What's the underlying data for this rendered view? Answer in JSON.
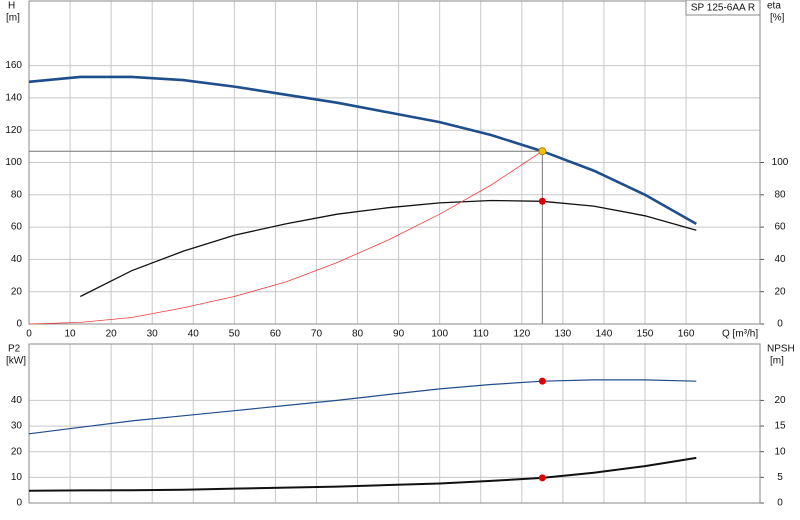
{
  "chart_data": [
    {
      "type": "line",
      "title": "SP 125-6AA R",
      "xlabel": "Q [m³/h]",
      "ylabel": "H",
      "ylabel_unit": "[m]",
      "y2label": "eta",
      "y2label_unit": "[%]",
      "x": [
        0,
        12.5,
        25,
        37.5,
        50,
        62.5,
        75,
        87.5,
        100,
        112.5,
        125,
        137.5,
        150,
        162.5
      ],
      "xlim": [
        0,
        178
      ],
      "xticks": [
        0,
        10,
        20,
        30,
        40,
        50,
        60,
        70,
        80,
        90,
        100,
        110,
        120,
        130,
        140,
        150,
        160
      ],
      "show_xtick_labels": true,
      "ylim": [
        0,
        200
      ],
      "yticks": [
        0,
        20,
        40,
        60,
        80,
        100,
        120,
        140,
        160
      ],
      "y2lim": [
        0,
        200
      ],
      "y2ticks": [
        0,
        20,
        40,
        60,
        80,
        100
      ],
      "grid": true,
      "series": [
        {
          "color": "#1f4e8c",
          "width": 2.6,
          "values": [
            150,
            153,
            153,
            151,
            147,
            142,
            137,
            131,
            125,
            117,
            107,
            95,
            80,
            62
          ]
        },
        {
          "color": "#111111",
          "width": 1.3,
          "axis": "y2",
          "values": [
            null,
            17,
            33,
            45,
            55,
            62,
            68,
            72,
            75,
            76.5,
            76,
            73,
            67,
            58
          ]
        },
        {
          "color": "#f03c3c",
          "width": 0.8,
          "values": [
            0,
            1,
            4,
            10,
            17,
            26,
            38,
            52,
            68,
            86,
            107,
            null,
            null,
            null
          ]
        }
      ],
      "duty": {
        "x": 125,
        "y": 107
      },
      "markers": [
        {
          "x": 125,
          "y": 107,
          "color": "#f5c000"
        },
        {
          "x": 125,
          "y": 76,
          "color": "#e00000",
          "axis": "y2"
        }
      ]
    },
    {
      "type": "line",
      "ylabel": "P2",
      "ylabel_unit": "[kW]",
      "y2label": "NPSH",
      "y2label_unit": "[m]",
      "x": [
        0,
        12.5,
        25,
        37.5,
        50,
        62.5,
        75,
        87.5,
        100,
        112.5,
        125,
        137.5,
        150,
        162.5
      ],
      "xlim": [
        0,
        178
      ],
      "xticks": [
        0,
        10,
        20,
        30,
        40,
        50,
        60,
        70,
        80,
        90,
        100,
        110,
        120,
        130,
        140,
        150,
        160
      ],
      "show_xtick_labels": false,
      "ylim": [
        0,
        62
      ],
      "yticks": [
        0,
        10,
        20,
        30,
        40
      ],
      "y2lim": [
        0,
        31
      ],
      "y2ticks": [
        0,
        5,
        10,
        15,
        20
      ],
      "grid": true,
      "series": [
        {
          "color": "#1f4e8c",
          "width": 1.2,
          "values": [
            27,
            29.5,
            32,
            34,
            36,
            38,
            40,
            42.3,
            44.5,
            46.2,
            47.5,
            48,
            48,
            47.5
          ]
        },
        {
          "color": "#111111",
          "width": 2,
          "axis": "y2",
          "values": [
            2.4,
            2.45,
            2.5,
            2.6,
            2.8,
            3,
            3.2,
            3.5,
            3.8,
            4.3,
            4.9,
            5.9,
            7.2,
            8.8
          ]
        }
      ],
      "markers": [
        {
          "x": 125,
          "y": 47.5,
          "color": "#e00000"
        },
        {
          "x": 125,
          "y": 4.9,
          "color": "#e00000",
          "axis": "y2"
        }
      ]
    }
  ]
}
